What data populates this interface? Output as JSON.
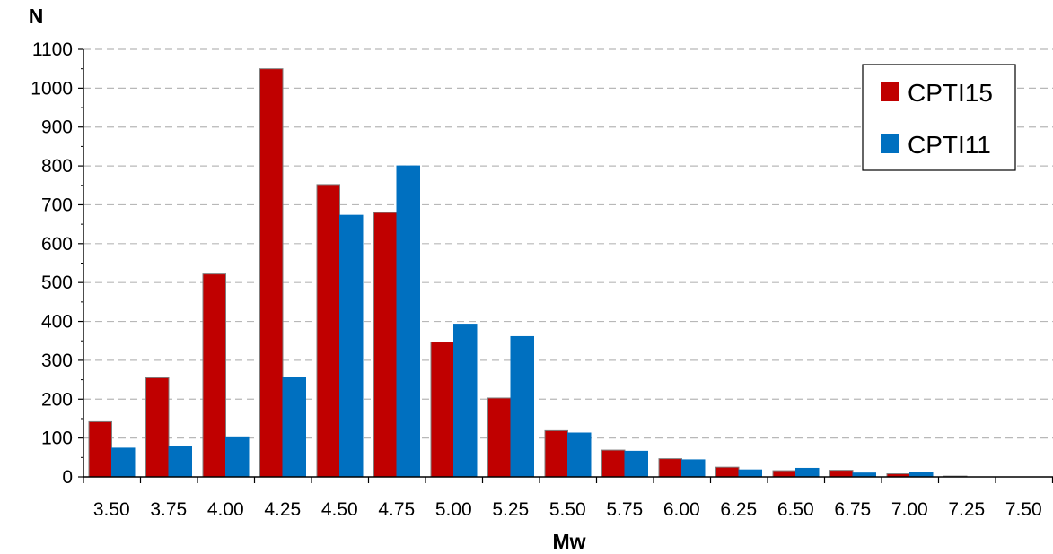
{
  "chart_data": {
    "type": "bar",
    "title": "",
    "xlabel": "Mw",
    "ylabel": "N",
    "ylim": [
      0,
      1100
    ],
    "yticks": [
      0,
      100,
      200,
      300,
      400,
      500,
      600,
      700,
      800,
      900,
      1000,
      1100
    ],
    "grid": "horizontal dashed",
    "legend_position": "top-right",
    "categories": [
      "3.50",
      "3.75",
      "4.00",
      "4.25",
      "4.50",
      "4.75",
      "5.00",
      "5.25",
      "5.50",
      "5.75",
      "6.00",
      "6.25",
      "6.50",
      "6.75",
      "7.00",
      "7.25",
      "7.50"
    ],
    "series": [
      {
        "name": "CPTI15",
        "color": "#c00000",
        "values": [
          142,
          255,
          522,
          1050,
          752,
          680,
          347,
          203,
          119,
          69,
          47,
          25,
          16,
          17,
          8,
          2,
          0
        ]
      },
      {
        "name": "CPTI11",
        "color": "#0070c0",
        "values": [
          74,
          78,
          103,
          257,
          673,
          800,
          393,
          361,
          113,
          66,
          44,
          18,
          22,
          10,
          12,
          0,
          0
        ]
      }
    ]
  }
}
